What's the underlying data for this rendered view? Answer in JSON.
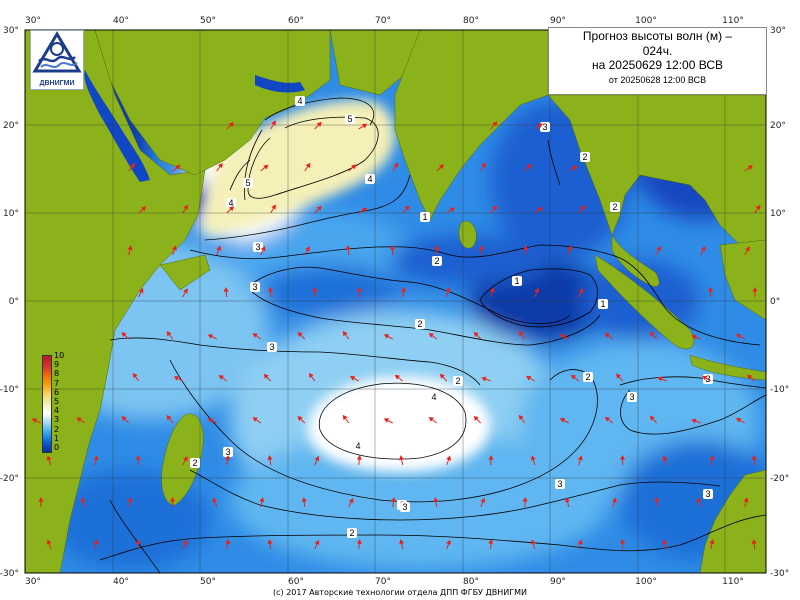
{
  "title": {
    "line1": "Прогноз высоты волн (м) –",
    "line2": "024ч.",
    "line3": "на 20250629 12:00 ВСВ",
    "line4": "от 20250628 12:00 ВСВ"
  },
  "logo": {
    "text": "ДВНИГМИ",
    "icon": "wave-emblem-icon"
  },
  "footer": "(c) 2017 Авторские технологии отдела ДПП ФГБУ ДВНИГМИ",
  "axes": {
    "lon_ticks": [
      "30°",
      "40°",
      "50°",
      "60°",
      "70°",
      "80°",
      "90°",
      "100°",
      "110°"
    ],
    "lat_ticks": [
      "30°",
      "20°",
      "10°",
      "0°",
      "-10°",
      "-20°",
      "-30°"
    ]
  },
  "legend": {
    "labels": [
      "10",
      "9",
      "8",
      "7",
      "6",
      "5",
      "4",
      "3",
      "2",
      "1",
      "0"
    ],
    "colors": [
      "#b71c1c",
      "#d32f2f",
      "#ef6c00",
      "#f4a300",
      "#f8d860",
      "#f5f0b8",
      "#ffffff",
      "#9fd7f2",
      "#33a6ee",
      "#0b5fd8",
      "#0a2f9c"
    ]
  },
  "colors": {
    "land": "#8cb21b",
    "deep_sea": "#1035b8",
    "mid_sea": "#2f8ce6",
    "light_sea": "#8ecff3",
    "high_wave": "#f5f0b8",
    "arrow": "#e8221b"
  },
  "contour_labels": [
    "5",
    "4",
    "4",
    "5",
    "3",
    "3",
    "3",
    "2",
    "2",
    "2",
    "1",
    "1",
    "2",
    "3",
    "3",
    "4",
    "4",
    "3",
    "3",
    "2",
    "3",
    "2",
    "2",
    "3",
    "2",
    "4",
    "1",
    "2",
    "3"
  ]
}
